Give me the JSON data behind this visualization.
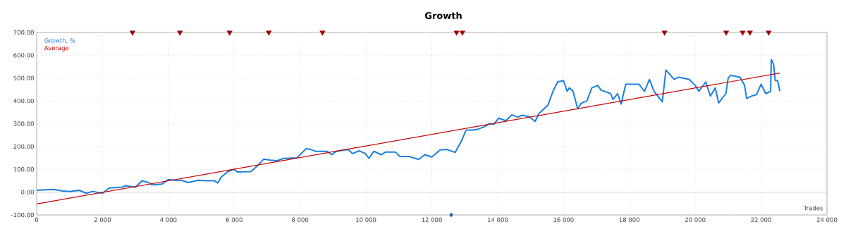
{
  "chart_data": {
    "type": "line",
    "title": "Growth",
    "xlabel": "Trades",
    "legend": "top left",
    "grid": true,
    "xlim": [
      0,
      24000
    ],
    "ylim": [
      -100,
      700
    ],
    "xticks": [
      0,
      {
        "value": 2000,
        "label": "2 000"
      },
      {
        "value": 4000,
        "label": "4 000"
      },
      {
        "value": 6000,
        "label": "6 000"
      },
      {
        "value": 8000,
        "label": "8 000"
      },
      {
        "value": 10000,
        "label": "10 000"
      },
      {
        "value": 12000,
        "label": "12 000"
      },
      {
        "value": 14000,
        "label": "14 000"
      },
      {
        "value": 16000,
        "label": "16 000"
      },
      {
        "value": 18000,
        "label": "18 000"
      },
      {
        "value": 20000,
        "label": "20 000"
      },
      {
        "value": 22000,
        "label": "22 000"
      },
      {
        "value": 24000,
        "label": "24 000"
      }
    ],
    "yticks": [
      {
        "value": -100,
        "label": "-100.00"
      },
      {
        "value": 0,
        "label": "0.00"
      },
      {
        "value": 100,
        "label": "100.00"
      },
      {
        "value": 200,
        "label": "200.00"
      },
      {
        "value": 300,
        "label": "300.00"
      },
      {
        "value": 400,
        "label": "400.00"
      },
      {
        "value": 500,
        "label": "500.00"
      },
      {
        "value": 600,
        "label": "600.00"
      },
      {
        "value": 700,
        "label": "700.00"
      }
    ],
    "ref_lines": [
      {
        "axis": "y",
        "value": 0,
        "color": "#c8c8c8",
        "line_style": "solid"
      }
    ],
    "series": [
      {
        "name": "Growth, %",
        "color": "#1a7fe0",
        "marker": "none",
        "x": [
          0,
          500,
          800,
          1000,
          1300,
          1500,
          1700,
          2000,
          2200,
          2600,
          2700,
          3000,
          3200,
          3400,
          3500,
          3800,
          4000,
          4200,
          4400,
          4600,
          4900,
          5200,
          5400,
          5500,
          5600,
          5800,
          6000,
          6100,
          6500,
          6700,
          6900,
          7100,
          7300,
          7500,
          7900,
          8180,
          8320,
          8470,
          8820,
          8960,
          9100,
          9460,
          9590,
          9800,
          9980,
          10090,
          10240,
          10460,
          10600,
          10890,
          11030,
          11320,
          11600,
          11790,
          12000,
          12250,
          12460,
          12710,
          12890,
          13040,
          13250,
          13390,
          13610,
          13750,
          13890,
          14030,
          14250,
          14430,
          14610,
          14750,
          14960,
          15140,
          15250,
          15530,
          15680,
          15820,
          16000,
          16110,
          16180,
          16290,
          16430,
          16540,
          16710,
          16860,
          17040,
          17140,
          17430,
          17500,
          17640,
          17750,
          17890,
          18070,
          18290,
          18460,
          18610,
          18750,
          19000,
          19110,
          19360,
          19500,
          19820,
          20000,
          20110,
          20320,
          20460,
          20610,
          20710,
          20930,
          21000,
          21070,
          21360,
          21500,
          21560,
          21710,
          21860,
          22000,
          22140,
          22290,
          22310,
          22380,
          22430,
          22500,
          22570
        ],
        "values": [
          8,
          12,
          5,
          3,
          8,
          -5,
          3,
          -5,
          18,
          22,
          28,
          22,
          50,
          42,
          32,
          35,
          55,
          52,
          52,
          42,
          52,
          50,
          50,
          40,
          65,
          90,
          100,
          88,
          90,
          115,
          145,
          140,
          138,
          148,
          150,
          190,
          187,
          179,
          179,
          164,
          179,
          187,
          169,
          181,
          169,
          148,
          179,
          164,
          176,
          176,
          156,
          156,
          143,
          164,
          154,
          185,
          187,
          174,
          221,
          272,
          272,
          275,
          288,
          300,
          298,
          324,
          313,
          339,
          329,
          337,
          331,
          310,
          344,
          382,
          442,
          483,
          489,
          442,
          457,
          442,
          365,
          390,
          400,
          457,
          468,
          447,
          432,
          406,
          432,
          386,
          473,
          473,
          473,
          442,
          494,
          442,
          396,
          535,
          494,
          504,
          494,
          468,
          442,
          483,
          421,
          457,
          391,
          432,
          499,
          512,
          504,
          468,
          411,
          421,
          427,
          473,
          432,
          442,
          581,
          561,
          489,
          489,
          442
        ]
      },
      {
        "name": "Average",
        "color": "#cc0000",
        "marker": "none",
        "x": [
          0,
          22570
        ],
        "values": [
          -52,
          522
        ]
      },
      {
        "color": "#a00000",
        "type": "scatter",
        "marker": "triangle",
        "x": [
          2910,
          4350,
          5860,
          7050,
          8680,
          12750,
          12930,
          19070,
          20940,
          21440,
          21660,
          22230
        ],
        "values": [
          700,
          700,
          700,
          700,
          700,
          700,
          700,
          700,
          700,
          700,
          700,
          700
        ]
      },
      {
        "color": "#1f5f99",
        "type": "scatter",
        "marker": "diamond",
        "x": [
          12590
        ],
        "values": [
          -100
        ]
      }
    ]
  }
}
